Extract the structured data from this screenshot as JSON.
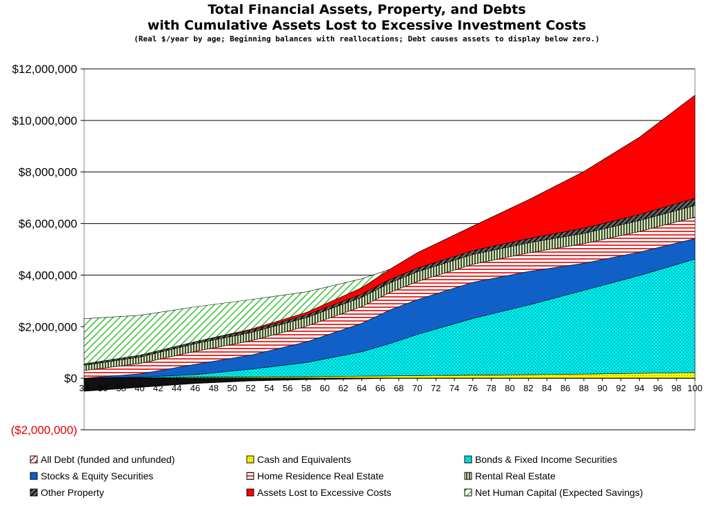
{
  "chart_data": {
    "type": "area",
    "stacked": true,
    "title": "Total Financial Assets, Property, and Debts",
    "title_line2": "with Cumulative Assets Lost to Excessive Investment Costs",
    "subtitle": "(Real $/year by age;  Beginning balances with reallocations; Debt causes assets to display below zero.)",
    "xlabel": "",
    "ylabel": "",
    "x_range": [
      34,
      100
    ],
    "ylim": [
      -2000000,
      12000000
    ],
    "y_ticks": [
      12000000,
      10000000,
      8000000,
      6000000,
      4000000,
      2000000,
      0,
      -2000000
    ],
    "y_tick_labels": [
      "$12,000,000",
      "$10,000,000",
      "$8,000,000",
      "$6,000,000",
      "$4,000,000",
      "$2,000,000",
      "$0",
      "($2,000,000)"
    ],
    "x_tick_labels": [
      "34",
      "36",
      "38",
      "40",
      "42",
      "44",
      "46",
      "48",
      "50",
      "52",
      "54",
      "56",
      "58",
      "60",
      "62",
      "64",
      "66",
      "68",
      "70",
      "72",
      "74",
      "76",
      "78",
      "80",
      "82",
      "84",
      "86",
      "88",
      "90",
      "92",
      "94",
      "96",
      "98",
      "100"
    ],
    "grid": "horizontal",
    "legend_position": "bottom",
    "x": [
      34,
      40,
      46,
      52,
      58,
      64,
      67,
      70,
      76,
      82,
      88,
      94,
      100
    ],
    "series": [
      {
        "name": "All Debt (funded and unfunded)",
        "color": "#ffffff",
        "pattern": "hatch-red",
        "values": [
          -500000,
          -350000,
          -200000,
          -100000,
          -50000,
          -20000,
          0,
          0,
          0,
          0,
          0,
          0,
          0
        ]
      },
      {
        "name": "Cash and Equivalents",
        "color": "#ffff00",
        "pattern": "dots-yellow",
        "values": [
          0,
          20000,
          40000,
          50000,
          60000,
          80000,
          90000,
          100000,
          120000,
          140000,
          160000,
          190000,
          220000
        ]
      },
      {
        "name": "Bonds & Fixed Income Securities",
        "color": "#00e0e0",
        "pattern": "dots-cyan",
        "values": [
          0,
          20000,
          100000,
          300000,
          550000,
          950000,
          1250000,
          1600000,
          2200000,
          2700000,
          3250000,
          3800000,
          4400000
        ]
      },
      {
        "name": "Stocks & Equity Securities",
        "color": "#1060c0",
        "pattern": "solid",
        "values": [
          0,
          130000,
          400000,
          550000,
          800000,
          1100000,
          1300000,
          1350000,
          1400000,
          1300000,
          1050000,
          900000,
          800000
        ]
      },
      {
        "name": "Home Residence Real Estate",
        "color": "#ffffff",
        "pattern": "hlines-red",
        "values": [
          300000,
          400000,
          500000,
          550000,
          600000,
          650000,
          680000,
          700000,
          700000,
          720000,
          760000,
          800000,
          830000
        ]
      },
      {
        "name": "Rental Real Estate",
        "color": "#a0c080",
        "pattern": "vlines-green",
        "values": [
          200000,
          250000,
          300000,
          320000,
          340000,
          360000,
          370000,
          380000,
          380000,
          390000,
          400000,
          430000,
          450000
        ]
      },
      {
        "name": "Other Property",
        "color": "#222222",
        "pattern": "hatch-dark",
        "values": [
          60000,
          70000,
          80000,
          90000,
          100000,
          120000,
          130000,
          140000,
          150000,
          170000,
          200000,
          230000,
          280000
        ]
      },
      {
        "name": "Assets Lost to Excessive Costs",
        "color": "#ff0000",
        "pattern": "solid",
        "values": [
          0,
          0,
          0,
          40000,
          100000,
          250000,
          400000,
          600000,
          950000,
          1500000,
          2200000,
          3000000,
          4000000
        ]
      },
      {
        "name": "Net Human Capital (Expected Savings)",
        "color": "#ffffff",
        "pattern": "hatch-green",
        "values": [
          1750000,
          1550000,
          1350000,
          1150000,
          800000,
          350000,
          0,
          0,
          0,
          0,
          0,
          0,
          0
        ]
      }
    ]
  }
}
